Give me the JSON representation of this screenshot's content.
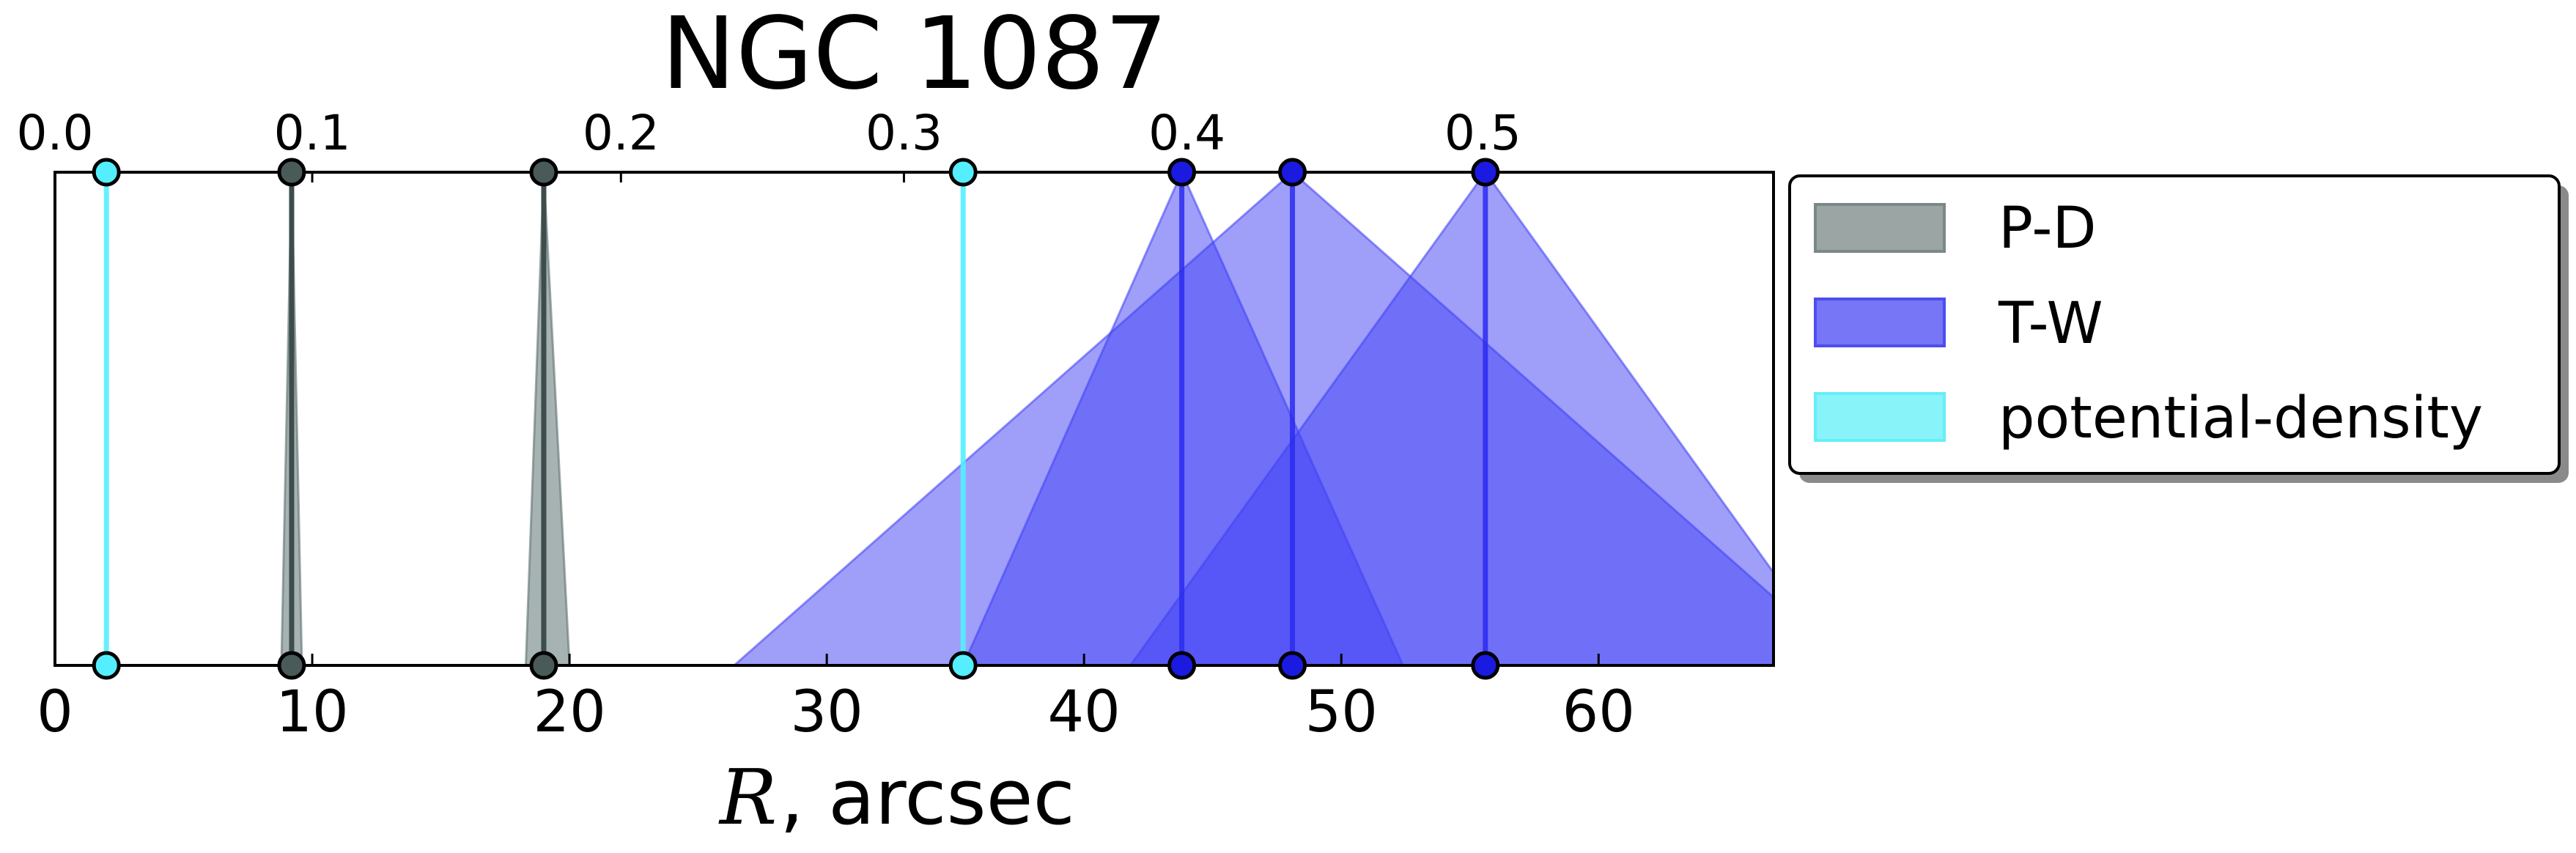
{
  "chart_data": {
    "type": "scatter",
    "title": "NGC 1087",
    "xlabel": {
      "symbol": "R",
      "rest": ", arcsec"
    },
    "xlim": [
      0,
      66.8
    ],
    "xticks": [
      0,
      10,
      20,
      30,
      40,
      50,
      60
    ],
    "secondary_axis": {
      "position": "top",
      "ticks": [
        {
          "label": "0.0",
          "x": 0.0
        },
        {
          "label": "0.1",
          "x": 10.0
        },
        {
          "label": "0.2",
          "x": 22.0
        },
        {
          "label": "0.3",
          "x": 33.0
        },
        {
          "label": "0.4",
          "x": 44.0
        },
        {
          "label": "0.5",
          "x": 55.5
        }
      ]
    },
    "grid": false,
    "legend_position": "outside-right",
    "series": [
      {
        "name": "P-D",
        "color": "#5f7372",
        "markers": [
          9.2,
          19.0
        ],
        "fills": [
          {
            "x": 9.2,
            "base_left": 8.8,
            "base_right": 9.6
          },
          {
            "x": 19.0,
            "base_left": 18.3,
            "base_right": 20.0
          }
        ]
      },
      {
        "name": "T-W",
        "color": "#3f3ff5",
        "markers": [
          43.8,
          48.1,
          55.6
        ],
        "fills": [
          {
            "x": 43.8,
            "base_left": 35.3,
            "base_right": 52.4
          },
          {
            "x": 48.1,
            "base_left": 26.4,
            "base_right": 69.8
          },
          {
            "x": 55.6,
            "base_left": 41.8,
            "base_right": 69.4
          }
        ],
        "upper_fills": [
          {
            "x": 43.8,
            "base_left": 41.8,
            "base_right": 52.4
          },
          {
            "x": 48.1,
            "base_left": 35.3,
            "base_right": 69.8
          }
        ]
      },
      {
        "name": "potential-density",
        "color": "#33e6f0",
        "markers": [
          2.0,
          35.3
        ]
      }
    ]
  }
}
